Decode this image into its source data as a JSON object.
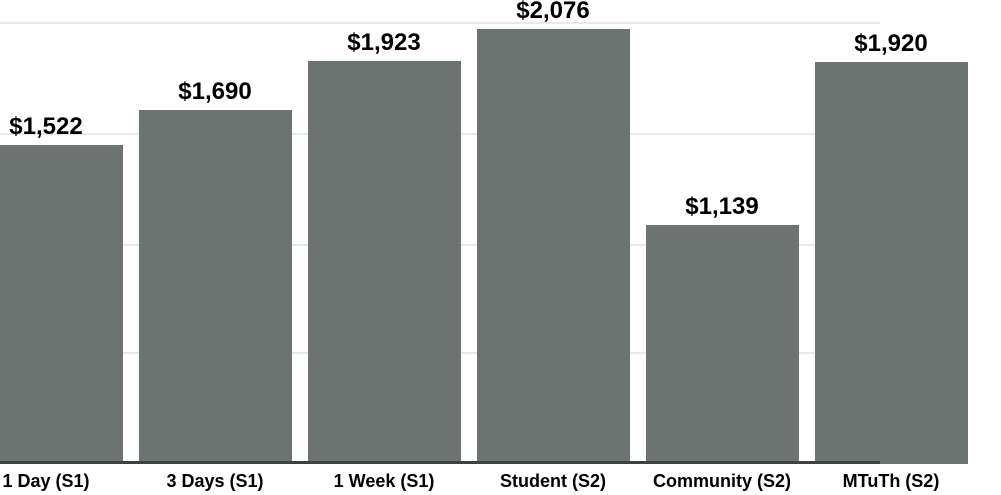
{
  "chart_data": {
    "type": "bar",
    "title": "",
    "xlabel": "",
    "ylabel": "",
    "categories": [
      "1 Day (S1)",
      "3 Days (S1)",
      "1 Week (S1)",
      "Student (S2)",
      "Community (S2)",
      "MTuTh (S2)"
    ],
    "values": [
      1522,
      1690,
      1923,
      2076,
      1139,
      1920
    ],
    "value_labels": [
      "$1,522",
      "$1,690",
      "$1,923",
      "$2,076",
      "$1,139",
      "$1,920"
    ],
    "ylim": [
      0,
      2215
    ],
    "grid": true,
    "legend": false,
    "bar_color": "#6d7371",
    "axis_line_color": "#3e4341",
    "gridline_color": "#e8eae9",
    "label_color": "#000000",
    "crop_note": ""
  }
}
